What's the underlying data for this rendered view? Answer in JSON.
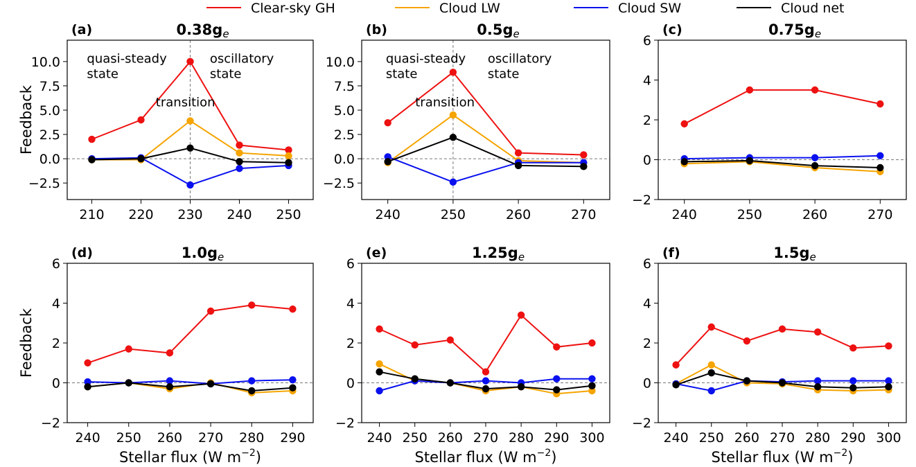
{
  "legend": {
    "placement": "top-center",
    "entries": [
      {
        "label": "Clear-sky GH",
        "color": "#ee1111"
      },
      {
        "label": "Cloud LW",
        "color": "#f5a400"
      },
      {
        "label": "Cloud SW",
        "color": "#0a11ee"
      },
      {
        "label": "Cloud net",
        "color": "#000000"
      }
    ]
  },
  "chart_data": [
    {
      "type": "line",
      "panel": "(a)",
      "title": "0.38g",
      "title_sub": "e",
      "xlabel": "",
      "ylabel": "Feedback",
      "x": [
        210,
        220,
        230,
        240,
        250
      ],
      "xticks": [
        210,
        220,
        230,
        240,
        250
      ],
      "xlim": [
        205,
        255
      ],
      "ylim": [
        -4.2,
        12.2
      ],
      "yticks": [
        "-2.5",
        "0.0",
        "2.5",
        "5.0",
        "7.5",
        "10.0"
      ],
      "vline": 230,
      "annotations": [
        {
          "lines": [
            "quasi-steady",
            "state"
          ],
          "x": 209,
          "y": 9.9
        },
        {
          "lines": [
            "transition"
          ],
          "x": 223,
          "y": 5.4
        },
        {
          "lines": [
            "oscillatory",
            "state"
          ],
          "x": 234,
          "y": 9.9
        }
      ],
      "series": [
        {
          "name": "Clear-sky GH",
          "values": [
            2.0,
            4.0,
            10.0,
            1.4,
            0.9
          ]
        },
        {
          "name": "Cloud LW",
          "values": [
            -0.1,
            -0.1,
            3.9,
            0.6,
            0.3
          ]
        },
        {
          "name": "Cloud SW",
          "values": [
            0.0,
            0.1,
            -2.7,
            -1.0,
            -0.7
          ]
        },
        {
          "name": "Cloud net",
          "values": [
            -0.1,
            0.0,
            1.1,
            -0.3,
            -0.4
          ]
        }
      ]
    },
    {
      "type": "line",
      "panel": "(b)",
      "title": "0.5g",
      "title_sub": "e",
      "xlabel": "",
      "ylabel": "",
      "x": [
        240,
        250,
        260,
        270
      ],
      "xticks": [
        240,
        250,
        260,
        270
      ],
      "xlim": [
        236,
        274
      ],
      "ylim": [
        -4.2,
        12.2
      ],
      "yticks": [
        "-2.5",
        "0.0",
        "2.5",
        "5.0",
        "7.5",
        "10.0"
      ],
      "vline": 250,
      "annotations": [
        {
          "lines": [
            "quasi-steady",
            "state"
          ],
          "x": 239.7,
          "y": 9.9
        },
        {
          "lines": [
            "transition"
          ],
          "x": 244.2,
          "y": 5.4
        },
        {
          "lines": [
            "oscillatory",
            "state"
          ],
          "x": 255.3,
          "y": 9.9
        }
      ],
      "series": [
        {
          "name": "Clear-sky GH",
          "values": [
            3.7,
            8.9,
            0.6,
            0.4
          ]
        },
        {
          "name": "Cloud LW",
          "values": [
            -0.4,
            4.5,
            -0.2,
            -0.4
          ]
        },
        {
          "name": "Cloud SW",
          "values": [
            0.2,
            -2.4,
            -0.4,
            -0.4
          ]
        },
        {
          "name": "Cloud net",
          "values": [
            -0.3,
            2.2,
            -0.7,
            -0.8
          ]
        }
      ]
    },
    {
      "type": "line",
      "panel": "(c)",
      "title": "0.75g",
      "title_sub": "e",
      "xlabel": "",
      "ylabel": "",
      "x": [
        240,
        250,
        260,
        270
      ],
      "xticks": [
        240,
        250,
        260,
        270
      ],
      "xlim": [
        236,
        274
      ],
      "ylim": [
        -2,
        6
      ],
      "yticks": [
        "-2",
        "0",
        "2",
        "4",
        "6"
      ],
      "series": [
        {
          "name": "Clear-sky GH",
          "values": [
            1.8,
            3.5,
            3.5,
            2.8
          ]
        },
        {
          "name": "Cloud LW",
          "values": [
            -0.2,
            -0.1,
            -0.4,
            -0.6
          ]
        },
        {
          "name": "Cloud SW",
          "values": [
            0.05,
            0.1,
            0.1,
            0.2
          ]
        },
        {
          "name": "Cloud net",
          "values": [
            -0.1,
            -0.05,
            -0.3,
            -0.4
          ]
        }
      ]
    },
    {
      "type": "line",
      "panel": "(d)",
      "title": "1.0g",
      "title_sub": "e",
      "xlabel": "Stellar flux (W m",
      "xlabel_sup": "−2",
      "xlabel_end": ")",
      "ylabel": "Feedback",
      "x": [
        240,
        250,
        260,
        270,
        280,
        290
      ],
      "xticks": [
        240,
        250,
        260,
        270,
        280,
        290
      ],
      "xlim": [
        235,
        295
      ],
      "ylim": [
        -2,
        6
      ],
      "yticks": [
        "-2",
        "0",
        "2",
        "4",
        "6"
      ],
      "series": [
        {
          "name": "Clear-sky GH",
          "values": [
            1.0,
            1.7,
            1.5,
            3.6,
            3.9,
            3.7
          ]
        },
        {
          "name": "Cloud LW",
          "values": [
            -0.2,
            0.0,
            -0.3,
            0.0,
            -0.5,
            -0.4
          ]
        },
        {
          "name": "Cloud SW",
          "values": [
            0.05,
            0.0,
            0.1,
            -0.05,
            0.1,
            0.15
          ]
        },
        {
          "name": "Cloud net",
          "values": [
            -0.2,
            0.0,
            -0.2,
            -0.05,
            -0.4,
            -0.25
          ]
        }
      ]
    },
    {
      "type": "line",
      "panel": "(e)",
      "title": "1.25g",
      "title_sub": "e",
      "xlabel": "Stellar flux (W m",
      "xlabel_sup": "−2",
      "xlabel_end": ")",
      "ylabel": "",
      "x": [
        240,
        250,
        260,
        270,
        280,
        290,
        300
      ],
      "xticks": [
        240,
        250,
        260,
        270,
        280,
        290,
        300
      ],
      "xlim": [
        235,
        305
      ],
      "ylim": [
        -2,
        6
      ],
      "yticks": [
        "-2",
        "0",
        "2",
        "4",
        "6"
      ],
      "series": [
        {
          "name": "Clear-sky GH",
          "values": [
            2.7,
            1.9,
            2.15,
            0.55,
            3.4,
            1.8,
            2.0
          ]
        },
        {
          "name": "Cloud LW",
          "values": [
            0.95,
            0.1,
            0.0,
            -0.4,
            -0.2,
            -0.55,
            -0.4
          ]
        },
        {
          "name": "Cloud SW",
          "values": [
            -0.4,
            0.1,
            0.0,
            0.1,
            0.0,
            0.2,
            0.2
          ]
        },
        {
          "name": "Cloud net",
          "values": [
            0.55,
            0.2,
            0.0,
            -0.3,
            -0.2,
            -0.35,
            -0.15
          ]
        }
      ]
    },
    {
      "type": "line",
      "panel": "(f)",
      "title": "1.5g",
      "title_sub": "e",
      "xlabel": "Stellar flux (W m",
      "xlabel_sup": "−2",
      "xlabel_end": ")",
      "ylabel": "",
      "x": [
        240,
        250,
        260,
        270,
        280,
        290,
        300
      ],
      "xticks": [
        240,
        250,
        260,
        270,
        280,
        290,
        300
      ],
      "xlim": [
        235,
        305
      ],
      "ylim": [
        -2,
        6
      ],
      "yticks": [
        "-2",
        "0",
        "2",
        "4",
        "6"
      ],
      "series": [
        {
          "name": "Clear-sky GH",
          "values": [
            0.9,
            2.8,
            2.1,
            2.7,
            2.55,
            1.75,
            1.85
          ]
        },
        {
          "name": "Cloud LW",
          "values": [
            -0.05,
            0.9,
            0.0,
            -0.05,
            -0.35,
            -0.4,
            -0.35
          ]
        },
        {
          "name": "Cloud SW",
          "values": [
            -0.05,
            -0.4,
            0.1,
            0.05,
            0.1,
            0.1,
            0.1
          ]
        },
        {
          "name": "Cloud net",
          "values": [
            -0.1,
            0.5,
            0.1,
            0.0,
            -0.2,
            -0.25,
            -0.2
          ]
        }
      ]
    }
  ]
}
